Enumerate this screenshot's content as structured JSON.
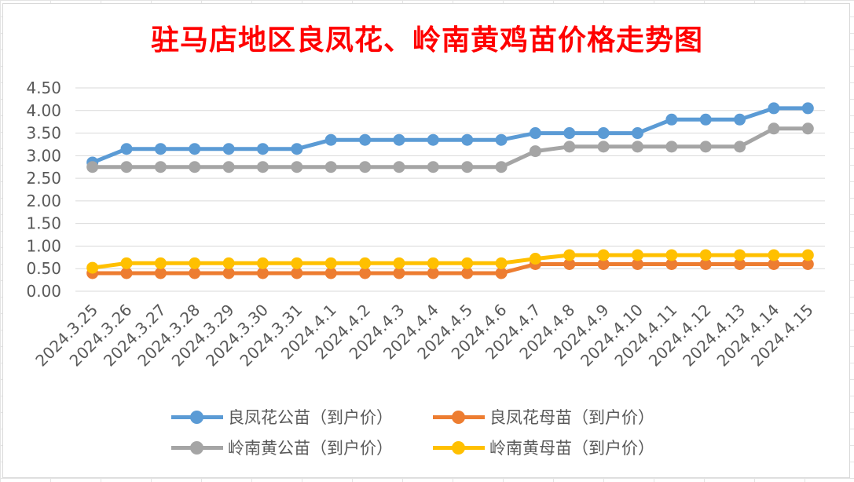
{
  "chart_data": {
    "type": "line",
    "title": "驻马店地区良凤花、岭南黄鸡苗价格走势图",
    "categories": [
      "2024.3.25",
      "2024.3.26",
      "2024.3.27",
      "2024.3.28",
      "2024.3.29",
      "2024.3.30",
      "2024.3.31",
      "2024.4.1",
      "2024.4.2",
      "2024.4.3",
      "2024.4.4",
      "2024.4.5",
      "2024.4.6",
      "2024.4.7",
      "2024.4.8",
      "2024.4.9",
      "2024.4.10",
      "2024.4.11",
      "2024.4.12",
      "2024.4.13",
      "2024.4.14",
      "2024.4.15"
    ],
    "ylim": [
      0,
      4.5
    ],
    "yticks": [
      "0.00",
      "0.50",
      "1.00",
      "1.50",
      "2.00",
      "2.50",
      "3.00",
      "3.50",
      "4.00",
      "4.50"
    ],
    "grid": true,
    "legend_position": "bottom",
    "series": [
      {
        "name": "良凤花公苗（到户价）",
        "color": "#5b9bd5",
        "values": [
          2.85,
          3.15,
          3.15,
          3.15,
          3.15,
          3.15,
          3.15,
          3.35,
          3.35,
          3.35,
          3.35,
          3.35,
          3.35,
          3.5,
          3.5,
          3.5,
          3.5,
          3.8,
          3.8,
          3.8,
          4.05,
          4.05
        ]
      },
      {
        "name": "良凤花母苗（到户价）",
        "color": "#ed7d31",
        "values": [
          0.4,
          0.4,
          0.4,
          0.4,
          0.4,
          0.4,
          0.4,
          0.4,
          0.4,
          0.4,
          0.4,
          0.4,
          0.4,
          0.6,
          0.6,
          0.6,
          0.6,
          0.6,
          0.6,
          0.6,
          0.6,
          0.6
        ]
      },
      {
        "name": "岭南黄公苗（到户价）",
        "color": "#a5a5a5",
        "values": [
          2.75,
          2.75,
          2.75,
          2.75,
          2.75,
          2.75,
          2.75,
          2.75,
          2.75,
          2.75,
          2.75,
          2.75,
          2.75,
          3.1,
          3.2,
          3.2,
          3.2,
          3.2,
          3.2,
          3.2,
          3.6,
          3.6
        ]
      },
      {
        "name": "岭南黄母苗（到户价）",
        "color": "#ffc000",
        "values": [
          0.52,
          0.62,
          0.62,
          0.62,
          0.62,
          0.62,
          0.62,
          0.62,
          0.62,
          0.62,
          0.62,
          0.62,
          0.62,
          0.72,
          0.8,
          0.8,
          0.8,
          0.8,
          0.8,
          0.8,
          0.8,
          0.8
        ]
      }
    ]
  }
}
